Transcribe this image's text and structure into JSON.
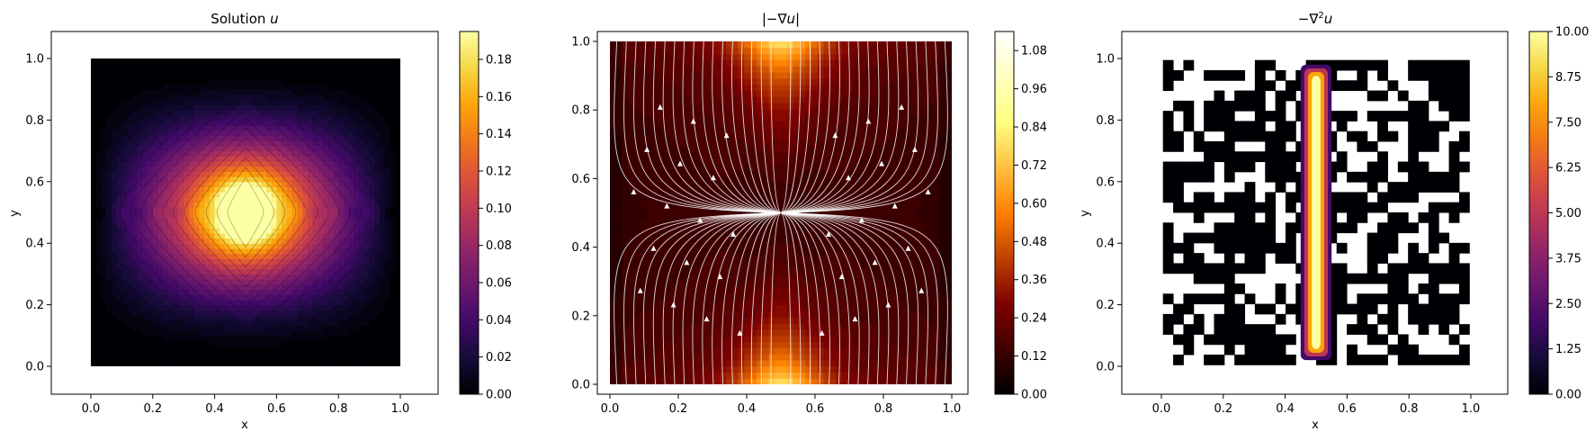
{
  "figure": {
    "panels": [
      {
        "id": "solution",
        "title": "Solution u",
        "title_parts": {
          "main": "Solution ",
          "var": "u"
        },
        "xlabel": "x",
        "ylabel": "y",
        "xticks": [
          "0.0",
          "0.2",
          "0.4",
          "0.6",
          "0.8",
          "1.0"
        ],
        "yticks": [
          "0.0",
          "0.2",
          "0.4",
          "0.6",
          "0.8",
          "1.0"
        ],
        "colorbar_ticks": [
          "0.00",
          "0.02",
          "0.04",
          "0.06",
          "0.08",
          "0.10",
          "0.12",
          "0.14",
          "0.16",
          "0.18"
        ]
      },
      {
        "id": "gradient",
        "title": "|−∇u|",
        "title_parts": {
          "main": "|−∇",
          "var": "u",
          "end": "|"
        },
        "xlabel": "",
        "ylabel": "",
        "xticks": [
          "0.0",
          "0.2",
          "0.4",
          "0.6",
          "0.8",
          "1.0"
        ],
        "yticks": [
          "0.0",
          "0.2",
          "0.4",
          "0.6",
          "0.8",
          "1.0"
        ],
        "colorbar_ticks": [
          "0.00",
          "0.12",
          "0.24",
          "0.36",
          "0.48",
          "0.60",
          "0.72",
          "0.84",
          "0.96",
          "1.08"
        ]
      },
      {
        "id": "laplacian",
        "title": "−∇²u",
        "title_parts": {
          "main": "−∇",
          "sup": "2",
          "var": "u"
        },
        "xlabel": "x",
        "ylabel": "y",
        "xticks": [
          "0.0",
          "0.2",
          "0.4",
          "0.6",
          "0.8",
          "1.0"
        ],
        "yticks": [
          "0.0",
          "0.2",
          "0.4",
          "0.6",
          "0.8",
          "1.0"
        ],
        "colorbar_ticks": [
          "0.00",
          "1.25",
          "2.50",
          "3.75",
          "5.00",
          "6.25",
          "7.50",
          "8.75",
          "10.00"
        ]
      }
    ]
  },
  "chart_data": [
    {
      "type": "heatmap",
      "title": "Solution u",
      "xlabel": "x",
      "ylabel": "y",
      "xlim": [
        -0.12,
        1.12
      ],
      "ylim": [
        -0.08,
        1.08
      ],
      "domain": {
        "x": [
          0,
          1
        ],
        "y": [
          0,
          1
        ]
      },
      "colormap": "inferno",
      "colorbar": {
        "range": [
          0,
          0.195
        ],
        "ticks": [
          0,
          0.02,
          0.04,
          0.06,
          0.08,
          0.1,
          0.12,
          0.14,
          0.16,
          0.18
        ]
      },
      "peak": {
        "x": 0.5,
        "y": 0.5,
        "value": 0.19
      },
      "boundary_value": 0.0,
      "contour_lines": true
    },
    {
      "type": "heatmap",
      "title": "|−∇u|",
      "xlabel": "",
      "ylabel": "",
      "xlim": [
        -0.04,
        1.04
      ],
      "ylim": [
        -0.03,
        1.03
      ],
      "domain": {
        "x": [
          0,
          1
        ],
        "y": [
          0,
          1
        ]
      },
      "colormap": "afmhot",
      "colorbar": {
        "range": [
          0,
          1.14
        ],
        "ticks": [
          0,
          0.12,
          0.24,
          0.36,
          0.48,
          0.6,
          0.72,
          0.84,
          0.96,
          1.08
        ]
      },
      "maxima": [
        {
          "x": 0.5,
          "y": 0.0,
          "value": 1.14
        },
        {
          "x": 0.5,
          "y": 1.0,
          "value": 1.14
        }
      ],
      "overlay": "streamlines",
      "streamline_color": "#ffffff"
    },
    {
      "type": "heatmap",
      "title": "−∇²u",
      "xlabel": "x",
      "ylabel": "y",
      "xlim": [
        -0.12,
        1.12
      ],
      "ylim": [
        -0.08,
        1.08
      ],
      "domain": {
        "x": [
          0,
          1
        ],
        "y": [
          0,
          1
        ]
      },
      "colormap": "inferno",
      "colorbar": {
        "range": [
          0,
          10
        ],
        "ticks": [
          0,
          1.25,
          2.5,
          3.75,
          5.0,
          6.25,
          7.5,
          8.75,
          10.0
        ]
      },
      "source_strip": {
        "x": [
          0.45,
          0.55
        ],
        "y": [
          0.02,
          0.98
        ],
        "value": 10
      },
      "background": "noisy near-zero values (black) with blank gaps"
    }
  ]
}
